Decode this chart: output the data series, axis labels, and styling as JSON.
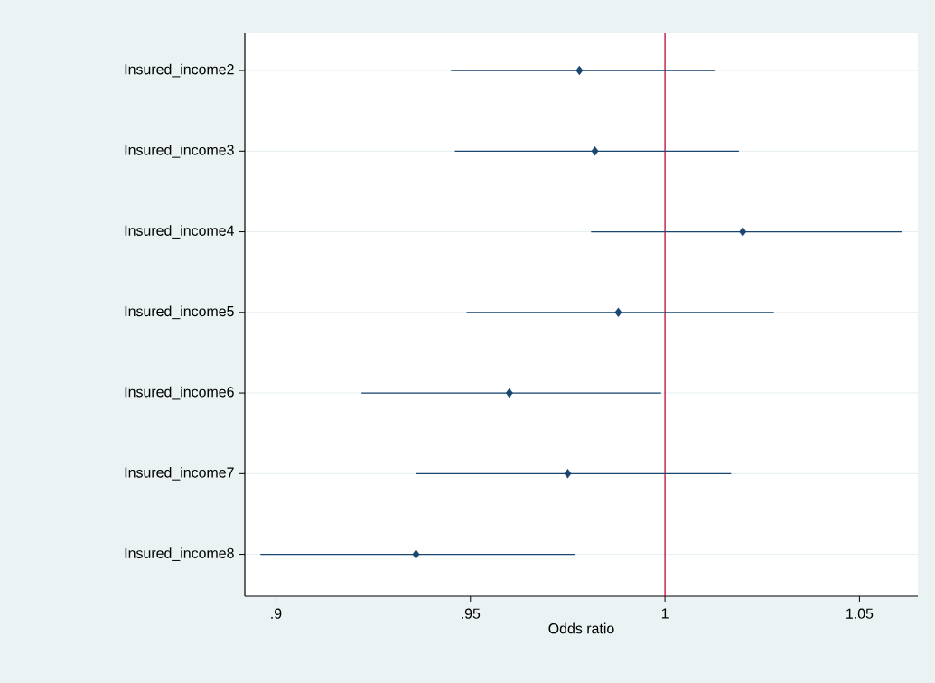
{
  "chart_data": {
    "type": "scatter",
    "orientation": "horizontal",
    "xlabel": "Odds ratio",
    "categories": [
      "Insured_income2",
      "Insured_income3",
      "Insured_income4",
      "Insured_income5",
      "Insured_income6",
      "Insured_income7",
      "Insured_income8"
    ],
    "values": [
      0.978,
      0.982,
      1.02,
      0.988,
      0.96,
      0.975,
      0.936
    ],
    "errors": [
      [
        0.945,
        1.013
      ],
      [
        0.946,
        1.019
      ],
      [
        0.981,
        1.061
      ],
      [
        0.949,
        1.028
      ],
      [
        0.922,
        0.999
      ],
      [
        0.936,
        1.017
      ],
      [
        0.896,
        0.977
      ]
    ],
    "color": "#1a476f",
    "marker": "diamond",
    "grid": "y",
    "xlim": [
      0.892,
      1.065
    ],
    "xticks": [
      {
        "value": 0.9,
        "label": ".9"
      },
      {
        "value": 0.95,
        "label": ".95"
      },
      1,
      1.05
    ],
    "ref_lines": [
      {
        "axis": "x",
        "value": 1,
        "color": "#c10534"
      }
    ]
  }
}
